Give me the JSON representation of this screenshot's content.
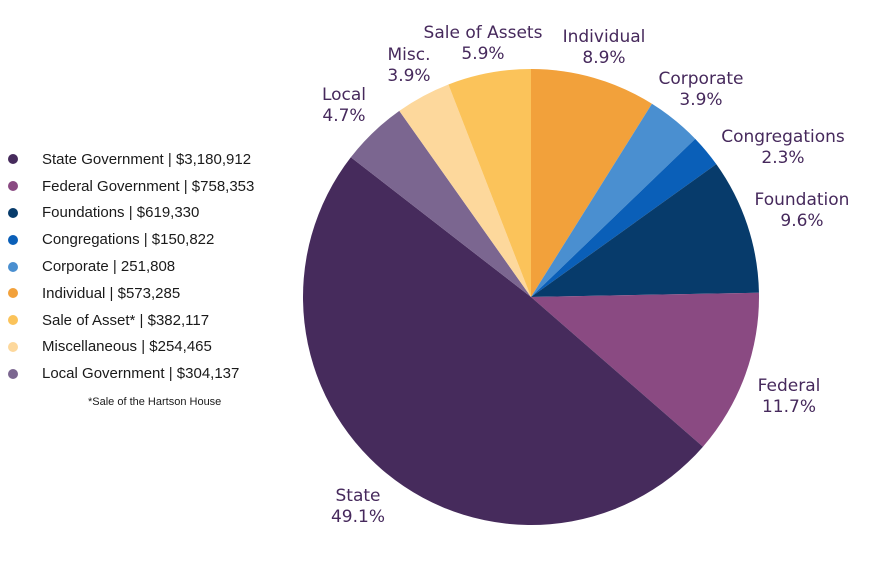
{
  "chart_data": {
    "type": "pie",
    "slices": [
      {
        "label": "Individual",
        "value": 8.9,
        "display": "8.9%",
        "color": "#f2a13b"
      },
      {
        "label": "Corporate",
        "value": 3.9,
        "display": "3.9%",
        "color": "#4a8fd0"
      },
      {
        "label": "Congregations",
        "value": 2.3,
        "display": "2.3%",
        "color": "#0a5fb8"
      },
      {
        "label": "Foundation",
        "value": 9.6,
        "display": "9.6%",
        "color": "#073b6b"
      },
      {
        "label": "Federal",
        "value": 11.7,
        "display": "11.7%",
        "color": "#8a4a82"
      },
      {
        "label": "State",
        "value": 49.1,
        "display": "49.1%",
        "color": "#462b5c"
      },
      {
        "label": "Local",
        "value": 4.7,
        "display": "4.7%",
        "color": "#7b6690"
      },
      {
        "label": "Misc.",
        "value": 3.9,
        "display": "3.9%",
        "color": "#fdd89c"
      },
      {
        "label": "Sale of Assets",
        "value": 5.9,
        "display": "5.9%",
        "color": "#fbc35a"
      }
    ]
  },
  "legend": [
    {
      "text": "State Government | $3,180,912",
      "color": "#462b5c"
    },
    {
      "text": "Federal Government  | $758,353",
      "color": "#8a4a82"
    },
    {
      "text": "Foundations | $619,330",
      "color": "#073b6b"
    },
    {
      "text": "Congregations | $150,822",
      "color": "#0a5fb8"
    },
    {
      "text": "Corporate | 251,808",
      "color": "#4a8fd0"
    },
    {
      "text": "Individual | $573,285",
      "color": "#f2a13b"
    },
    {
      "text": "Sale of Asset* | $382,117",
      "color": "#fbc35a"
    },
    {
      "text": "Miscellaneous | $254,465",
      "color": "#fdd89c"
    },
    {
      "text": "Local Government | $304,137",
      "color": "#7b6690"
    }
  ],
  "footnote": "*Sale of the Hartson House"
}
